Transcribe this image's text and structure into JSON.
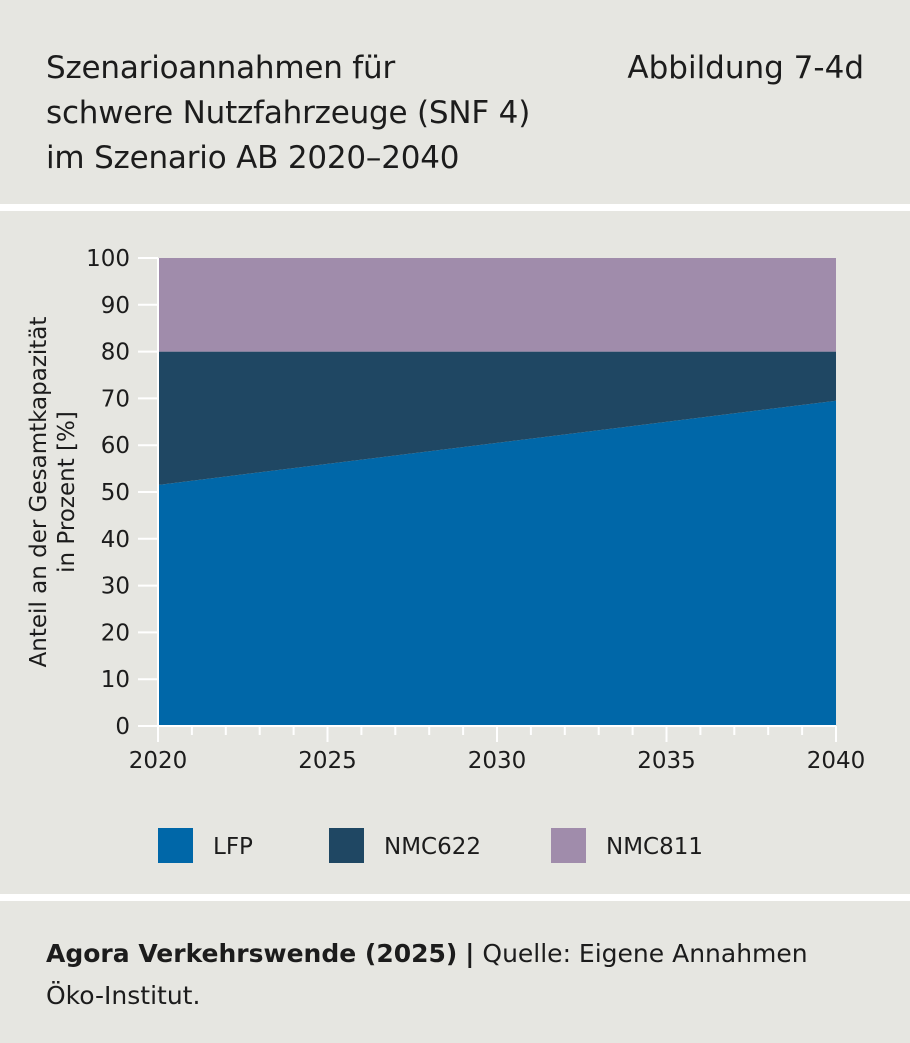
{
  "header": {
    "title_lines": [
      "Szenarioannahmen für",
      "schwere Nutzfahrzeuge (SNF 4)",
      "im Szenario AB 2020–2040"
    ],
    "figure_label": "Abbildung 7-4d"
  },
  "footer": {
    "publisher": "Agora Verkehrswende (2025)",
    "separator": "|",
    "source": "Quelle: Eigene Annahmen Öko-Institut."
  },
  "colors": {
    "LFP": "#0067a8",
    "NMC622": "#1f4763",
    "NMC811": "#a08cab"
  },
  "chart_data": {
    "type": "area",
    "stacked": true,
    "title": "Szenarioannahmen für schwere Nutzfahrzeuge (SNF 4) im Szenario AB 2020–2040",
    "xlabel": "",
    "ylabel_lines": [
      "Anteil an der Gesamtkapazität",
      "in Prozent [%]"
    ],
    "x": [
      2020,
      2040
    ],
    "xlim": [
      2020,
      2040
    ],
    "ylim": [
      0,
      100
    ],
    "xticks": [
      2020,
      2025,
      2030,
      2035,
      2040
    ],
    "xticks_minor_step": 1,
    "yticks": [
      0,
      10,
      20,
      30,
      40,
      50,
      60,
      70,
      80,
      90,
      100
    ],
    "grid": false,
    "legend_position": "bottom",
    "series": [
      {
        "name": "LFP",
        "values": [
          51.5,
          69.5
        ]
      },
      {
        "name": "NMC622",
        "values": [
          28.5,
          10.5
        ]
      },
      {
        "name": "NMC811",
        "values": [
          20,
          20
        ]
      }
    ]
  }
}
